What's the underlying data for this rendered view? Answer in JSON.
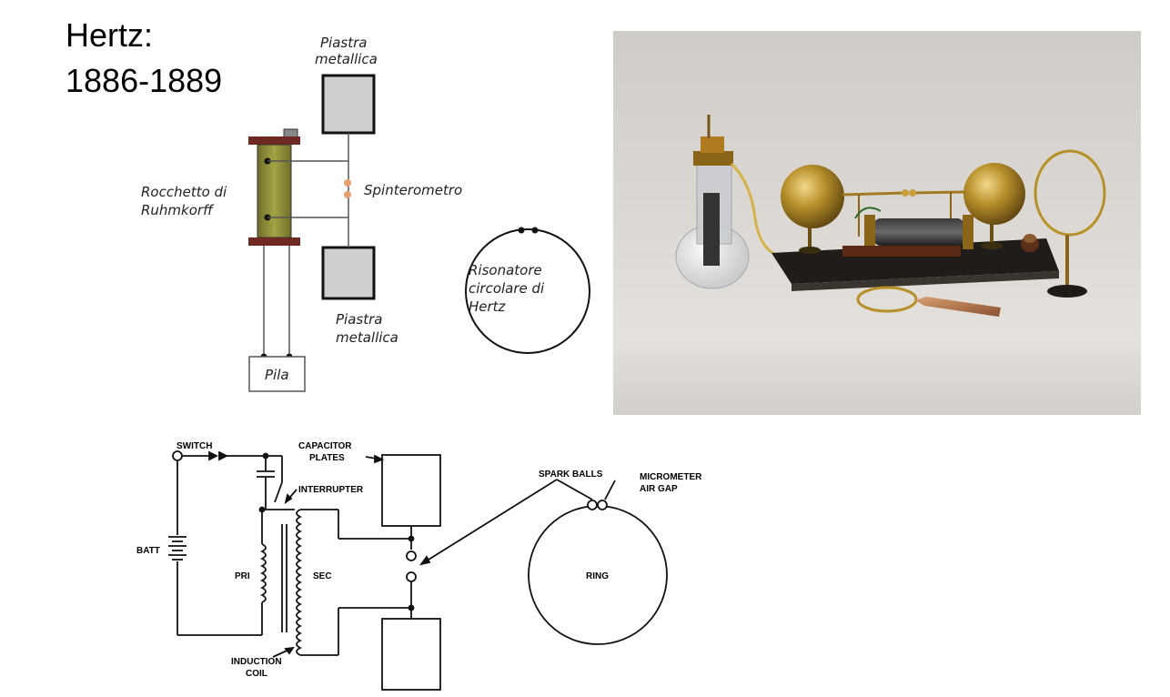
{
  "title": {
    "line1": "Hertz:",
    "line2": "1886-1889"
  },
  "top_diagram": {
    "plate_top_label": [
      "Piastra",
      "metallica"
    ],
    "plate_bottom_label": [
      "Piastra",
      "metallica"
    ],
    "coil_label": [
      "Rocchetto di",
      "Ruhmkorff"
    ],
    "spark_label": "Spinterometro",
    "resonator_label": [
      "Risonatore",
      "circolare di",
      "Hertz"
    ],
    "battery_label": "Pila",
    "colors": {
      "coil": "#9a9a3a",
      "coil_caps": "#6e2a22",
      "plates": "#cfcfcf",
      "sparks": "#e8a070"
    }
  },
  "bottom_diagram": {
    "switch": "SWITCH",
    "capacitor_plates": [
      "CAPACITOR",
      "PLATES"
    ],
    "interrupter": "INTERRUPTER",
    "battery": "BATT",
    "primary": "PRI",
    "secondary": "SEC",
    "induction_coil": [
      "INDUCTION",
      "COIL"
    ],
    "spark_balls": "SPARK BALLS",
    "micrometer": [
      "MICROMETER",
      "AIR GAP"
    ],
    "ring": "RING"
  },
  "photo": {
    "icon": "hertz-apparatus-photo",
    "colors": {
      "background": "#d9d5d0",
      "brass": "#b8902a",
      "base": "#2a2622"
    }
  }
}
